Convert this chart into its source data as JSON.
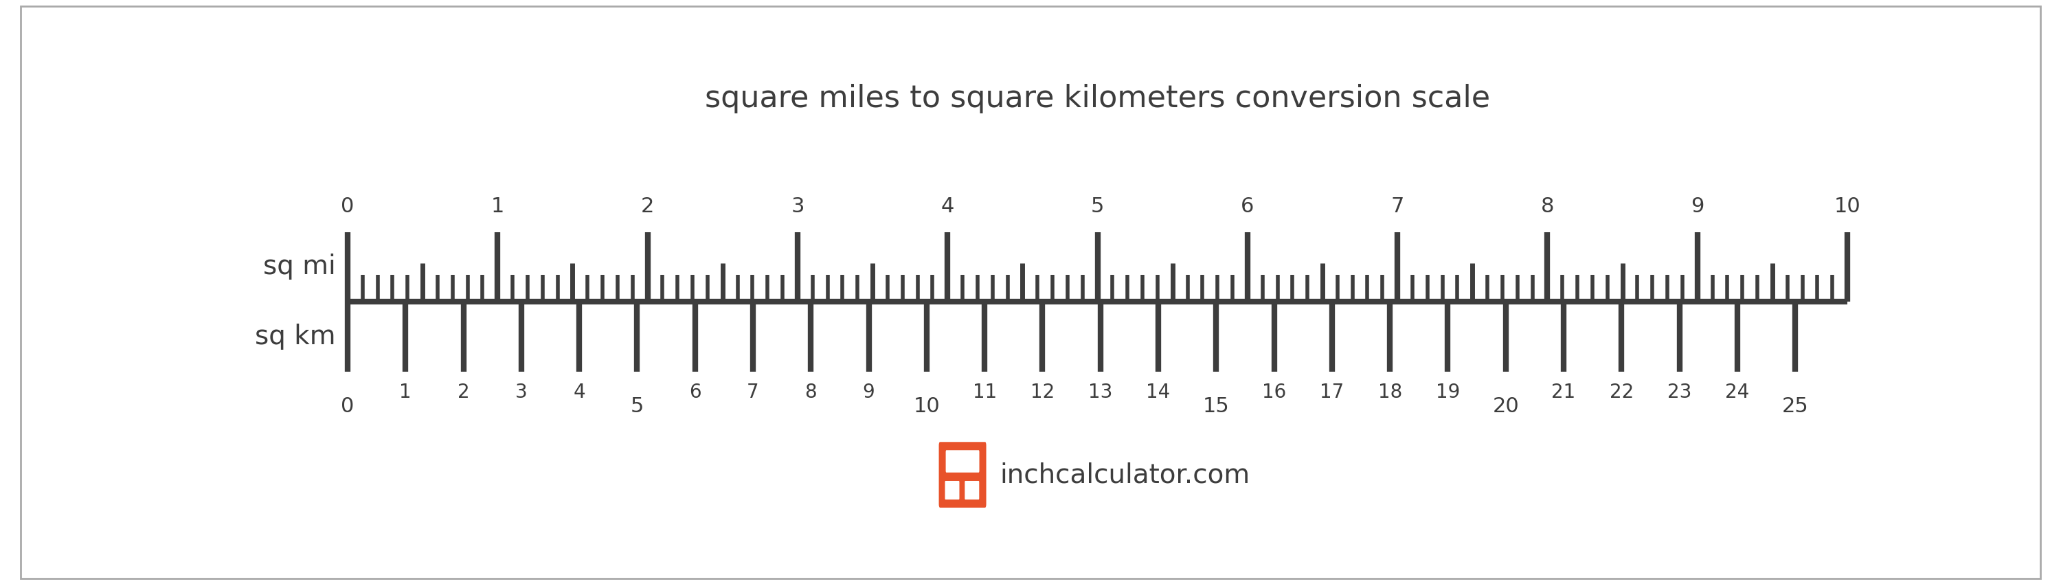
{
  "title": "square miles to square kilometers conversion scale",
  "title_fontsize": 32,
  "label_sqmi": "sq mi",
  "label_sqkm": "sq km",
  "label_fontsize": 28,
  "sqmi_max": 10,
  "conversion_factor": 2.58999,
  "ruler_color": "#3d3d3d",
  "ruler_linewidth": 6,
  "tick_color": "#3d3d3d",
  "text_color": "#3d3d3d",
  "tick_label_fontsize": 22,
  "background_color": "#ffffff",
  "border_color": "#888888",
  "logo_text": "inchcalculator.com",
  "logo_color": "#e8522a",
  "logo_fontsize": 28,
  "sqmi_labeled_ticks": [
    0,
    1,
    2,
    3,
    4,
    5,
    6,
    7,
    8,
    9,
    10
  ]
}
